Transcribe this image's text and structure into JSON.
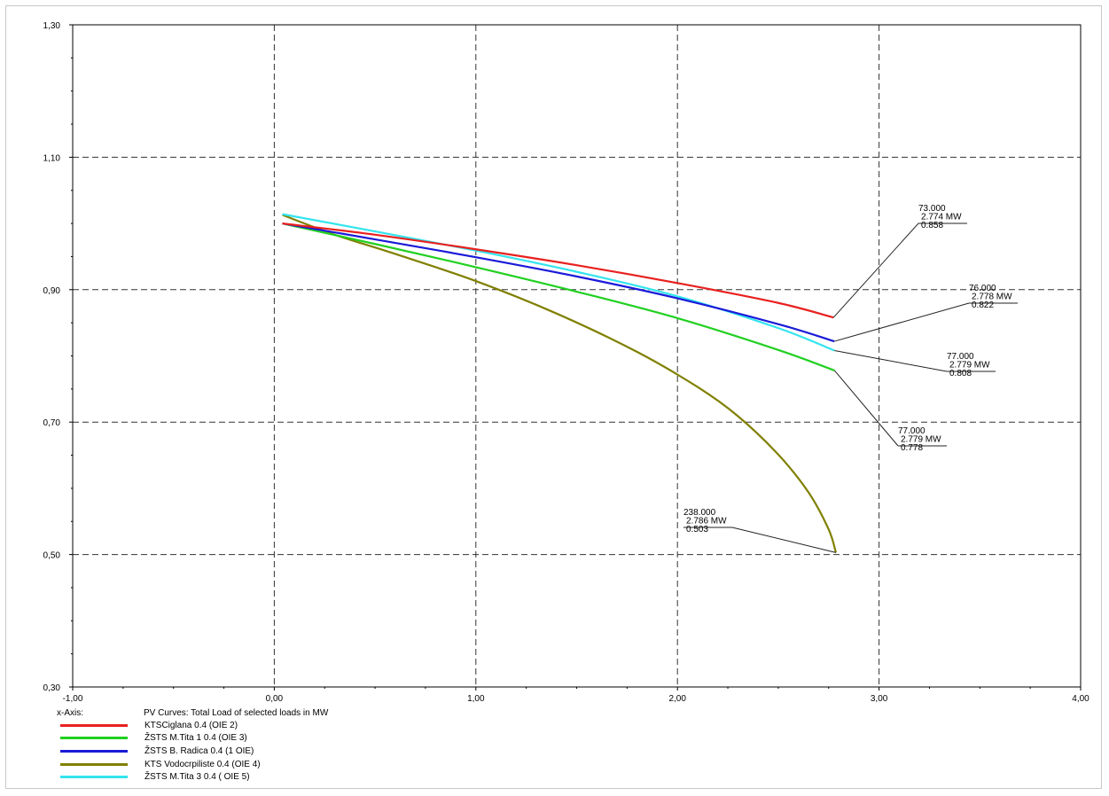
{
  "chart_data": {
    "type": "line",
    "title": "",
    "xlabel": "PV Curves: Total Load of selected loads in MW",
    "ylabel": "",
    "xlim": [
      -1.0,
      4.0
    ],
    "ylim": [
      0.3,
      1.3
    ],
    "x_ticks": [
      "-1,00",
      "0,00",
      "1,00",
      "2,00",
      "3,00",
      "4,00"
    ],
    "y_ticks": [
      "0,30",
      "0,50",
      "0,70",
      "0,90",
      "1,10",
      "1,30"
    ],
    "grid": true,
    "legend_position": "bottom-left",
    "legend_axis_label": "x-Axis:",
    "series": [
      {
        "name": "KTSCiglana 0.4 (OIE 2)",
        "color": "#e8211f",
        "x": [
          0.04,
          0.5,
          1.0,
          1.5,
          2.0,
          2.5,
          2.774
        ],
        "y": [
          1.0,
          0.983,
          0.961,
          0.937,
          0.91,
          0.88,
          0.858
        ]
      },
      {
        "name": "ŽSTS M.Tita 1 0.4 (OIE 3)",
        "color": "#20d020",
        "x": [
          0.04,
          0.5,
          1.0,
          1.5,
          2.0,
          2.5,
          2.779
        ],
        "y": [
          1.0,
          0.969,
          0.934,
          0.897,
          0.857,
          0.809,
          0.778
        ]
      },
      {
        "name": "ŽSTS B. Radica 0.4 (1 OIE)",
        "color": "#1a1ad8",
        "x": [
          0.04,
          0.5,
          1.0,
          1.5,
          2.0,
          2.5,
          2.778
        ],
        "y": [
          1.0,
          0.976,
          0.949,
          0.92,
          0.887,
          0.848,
          0.822
        ]
      },
      {
        "name": "KTS Vodocrpiliste 0.4 (OIE 4)",
        "color": "#808000",
        "x": [
          0.04,
          0.3,
          0.6,
          1.0,
          1.4,
          1.8,
          2.1,
          2.3,
          2.5,
          2.65,
          2.75,
          2.786
        ],
        "y": [
          1.013,
          0.983,
          0.954,
          0.913,
          0.864,
          0.806,
          0.753,
          0.709,
          0.651,
          0.594,
          0.538,
          0.503
        ]
      },
      {
        "name": "ŽSTS M.Tita 3 0.4 ( OIE 5)",
        "color": "#33e4ee",
        "x": [
          0.04,
          0.5,
          1.0,
          1.5,
          2.0,
          2.5,
          2.779
        ],
        "y": [
          1.014,
          0.988,
          0.959,
          0.927,
          0.89,
          0.842,
          0.808
        ]
      }
    ],
    "annotations": [
      {
        "lines": [
          "73.000",
          "2.774 MW",
          "0.858"
        ],
        "point": [
          2.774,
          0.858
        ]
      },
      {
        "lines": [
          "76.000",
          "2.778 MW",
          "0.822"
        ],
        "point": [
          2.778,
          0.822
        ]
      },
      {
        "lines": [
          "77.000",
          "2.779 MW",
          "0.808"
        ],
        "point": [
          2.779,
          0.808
        ]
      },
      {
        "lines": [
          "77.000",
          "2.779 MW",
          "0.778"
        ],
        "point": [
          2.779,
          0.778
        ]
      },
      {
        "lines": [
          "238.000",
          "2.786 MW",
          "0.503"
        ],
        "point": [
          2.786,
          0.503
        ]
      }
    ]
  }
}
